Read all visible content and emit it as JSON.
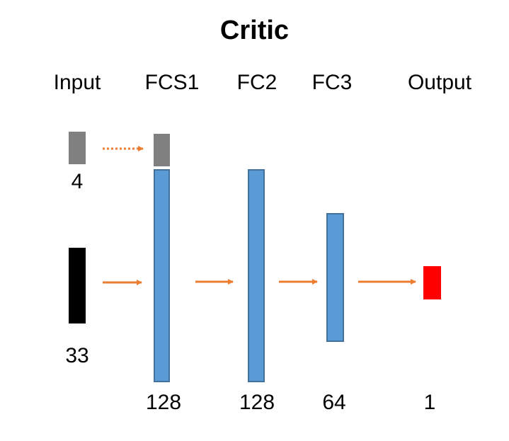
{
  "title": "Critic",
  "columns": {
    "input": "Input",
    "fcs1": "FCS1",
    "fc2": "FC2",
    "fc3": "FC3",
    "output": "Output"
  },
  "sizes": {
    "action_input": "4",
    "state_input": "33",
    "fcs1": "128",
    "fc2": "128",
    "fc3": "64",
    "output": "1"
  },
  "colors": {
    "action_block": "#808080",
    "state_block": "#000000",
    "fc_layer": "#5b9bd5",
    "fc_border": "#41719c",
    "output_block": "#ff0000",
    "arrow": "#ed7d31"
  }
}
